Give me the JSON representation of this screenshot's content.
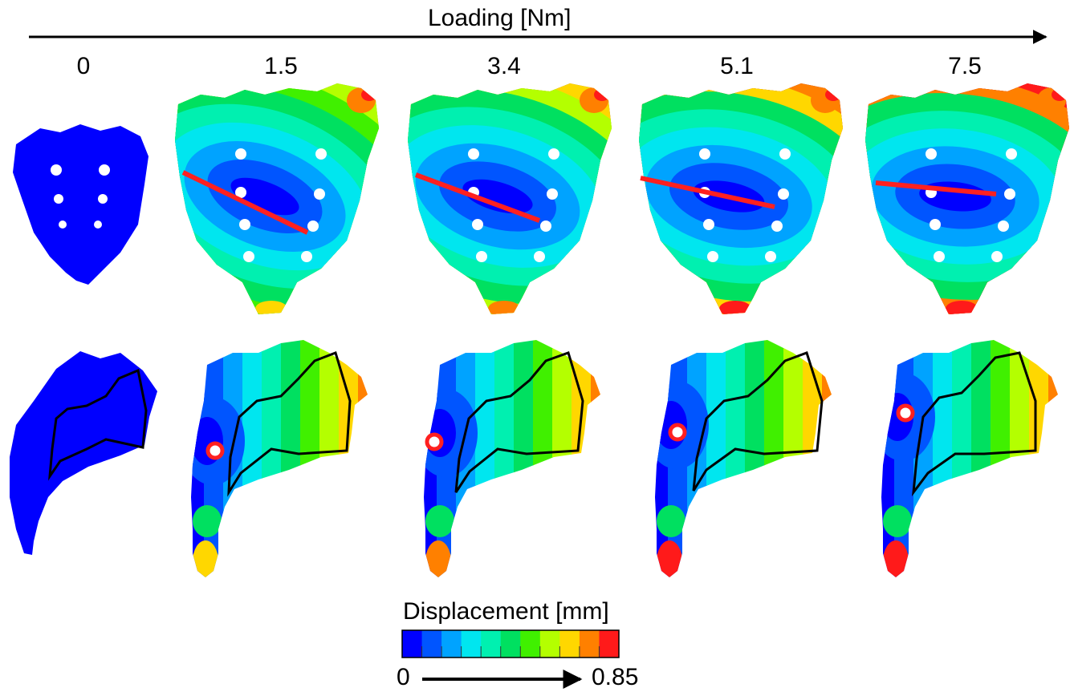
{
  "axis": {
    "title": "Loading [Nm]"
  },
  "loading_values": [
    "0",
    "1.5",
    "3.4",
    "5.1",
    "7.5"
  ],
  "legend": {
    "title": "Displacement [mm]",
    "min_label": "0",
    "max_label": "0.85",
    "bins": 11,
    "colors": [
      "#0000ff",
      "#0055ff",
      "#00a3ff",
      "#00e6ef",
      "#00f0b0",
      "#00e060",
      "#40f000",
      "#b4ff00",
      "#ffd700",
      "#ff8000",
      "#ff1a1a"
    ]
  },
  "annotation_colors": {
    "axis_line": "#ff2020",
    "max_point": "#ff2020",
    "region_outline": "#000000"
  }
}
